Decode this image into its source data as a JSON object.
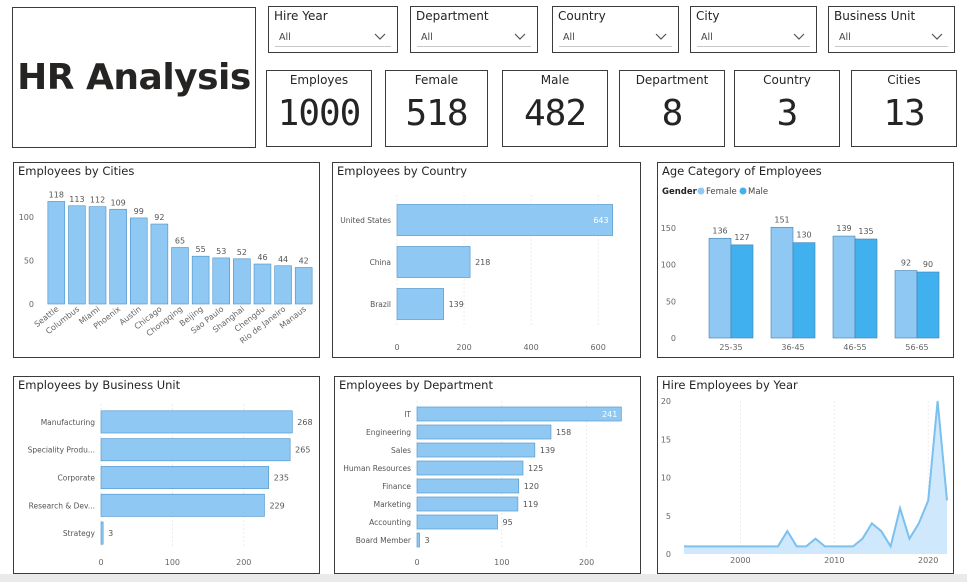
{
  "title": "HR Analysis",
  "slicers": [
    {
      "label": "Hire Year",
      "value": "All"
    },
    {
      "label": "Department",
      "value": "All"
    },
    {
      "label": "Country",
      "value": "All"
    },
    {
      "label": "City",
      "value": "All"
    },
    {
      "label": "Business Unit",
      "value": "All"
    }
  ],
  "cards": [
    {
      "label": "Employes",
      "value": "1000"
    },
    {
      "label": "Female",
      "value": "518"
    },
    {
      "label": "Male",
      "value": "482"
    },
    {
      "label": "Department",
      "value": "8"
    },
    {
      "label": "Country",
      "value": "3"
    },
    {
      "label": "Cities",
      "value": "13"
    }
  ],
  "colors": {
    "bar": "#8fc9f3",
    "bar_stroke": "#4a90c8",
    "male": "#41b0ee",
    "female": "#8fc9f3",
    "grid": "#e6e6e6",
    "axis_text": "#666666"
  },
  "chart_data": [
    {
      "id": "cities",
      "type": "bar",
      "title": "Employees by Cities",
      "categories": [
        "Seattle",
        "Columbus",
        "Miami",
        "Phoenix",
        "Austin",
        "Chicago",
        "Chongqing",
        "Beijing",
        "Sao Paulo",
        "Shanghai",
        "Chengdu",
        "Rio de Janeiro",
        "Manaus"
      ],
      "values": [
        118,
        113,
        112,
        109,
        99,
        92,
        65,
        55,
        53,
        52,
        46,
        44,
        42
      ],
      "yticks": [
        0,
        50,
        100
      ],
      "ylim": [
        0,
        130
      ]
    },
    {
      "id": "country",
      "type": "bar",
      "orientation": "horizontal",
      "title": "Employees by Country",
      "categories": [
        "United States",
        "China",
        "Brazil"
      ],
      "values": [
        643,
        218,
        139
      ],
      "xticks": [
        0,
        200,
        400,
        600
      ],
      "xlim": [
        0,
        680
      ]
    },
    {
      "id": "age",
      "type": "bar",
      "title": "Age Category of Employees",
      "legend_title": "Gender",
      "legend_position": "top-left",
      "categories": [
        "25-35",
        "36-45",
        "46-55",
        "56-65"
      ],
      "series": [
        {
          "name": "Female",
          "values": [
            136,
            151,
            139,
            92
          ]
        },
        {
          "name": "Male",
          "values": [
            127,
            130,
            135,
            90
          ]
        }
      ],
      "yticks": [
        0,
        50,
        100,
        150
      ],
      "ylim": [
        0,
        165
      ]
    },
    {
      "id": "bu",
      "type": "bar",
      "orientation": "horizontal",
      "title": "Employees by Business Unit",
      "categories": [
        "Manufacturing",
        "Speciality Produ...",
        "Corporate",
        "Research & Dev...",
        "Strategy"
      ],
      "values": [
        268,
        265,
        235,
        229,
        3
      ],
      "xticks": [
        0,
        100,
        200
      ],
      "xlim": [
        0,
        290
      ]
    },
    {
      "id": "dept",
      "type": "bar",
      "orientation": "horizontal",
      "title": "Employees by Department",
      "categories": [
        "IT",
        "Engineering",
        "Sales",
        "Human Resources",
        "Finance",
        "Marketing",
        "Accounting",
        "Board Member"
      ],
      "values": [
        241,
        158,
        139,
        125,
        120,
        119,
        95,
        3
      ],
      "xticks": [
        0,
        100,
        200
      ],
      "xlim": [
        0,
        250
      ]
    },
    {
      "id": "year",
      "type": "area",
      "title": "Hire Employees by Year",
      "x": [
        1994,
        1995,
        1996,
        1997,
        1998,
        1999,
        2000,
        2001,
        2002,
        2003,
        2004,
        2005,
        2006,
        2007,
        2008,
        2009,
        2010,
        2011,
        2012,
        2013,
        2014,
        2015,
        2016,
        2017,
        2018,
        2019,
        2020,
        2021,
        2022
      ],
      "y": [
        1,
        1,
        1,
        1,
        1,
        1,
        1,
        1,
        1,
        1,
        1,
        3,
        1,
        1,
        2,
        1,
        1,
        1,
        1,
        2,
        4,
        3,
        1,
        6,
        2,
        4,
        7,
        20,
        7
      ],
      "xticks": [
        2000,
        2010,
        2020
      ],
      "yticks": [
        0,
        5,
        10,
        15,
        20
      ],
      "xlim": [
        1994,
        2022
      ],
      "ylim": [
        0,
        20
      ]
    }
  ]
}
